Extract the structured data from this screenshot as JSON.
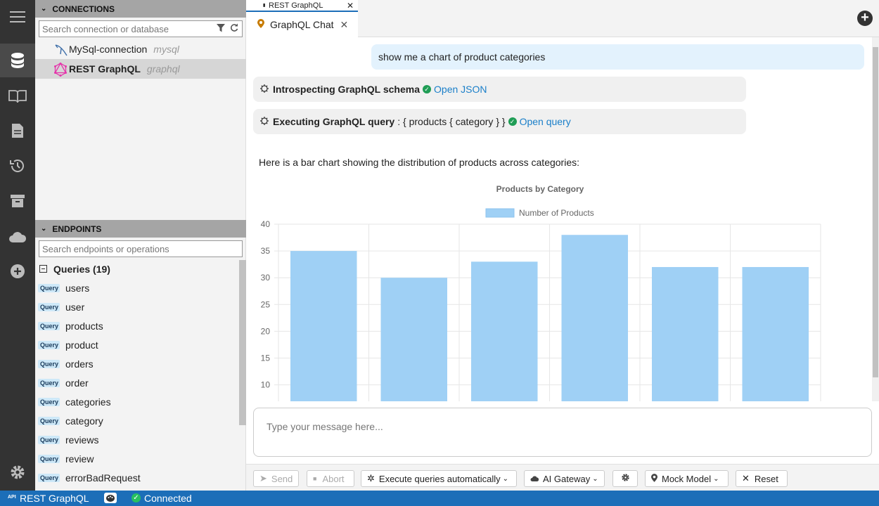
{
  "activity": {
    "icons": [
      "menu-icon",
      "database-icon",
      "book-icon",
      "file-icon",
      "history-icon",
      "archive-icon",
      "cloud-icon",
      "add-icon",
      "settings-icon"
    ]
  },
  "connections": {
    "header": "CONNECTIONS",
    "search_placeholder": "Search connection or database",
    "items": [
      {
        "name": "MySql-connection",
        "driver": "mysql"
      },
      {
        "name": "REST GraphQL",
        "driver": "graphql"
      }
    ]
  },
  "endpoints": {
    "header": "ENDPOINTS",
    "search_placeholder": "Search endpoints or operations",
    "group": "Queries (19)",
    "badge": "Query",
    "items": [
      "users",
      "user",
      "products",
      "product",
      "orders",
      "order",
      "categories",
      "category",
      "reviews",
      "review",
      "errorBadRequest"
    ]
  },
  "tabs": {
    "top_tab": "REST GraphQL",
    "chat_tab": "GraphQL Chat"
  },
  "chat": {
    "user_message": "show me a chart of product categories",
    "step1_label": "Introspecting GraphQL schema",
    "step1_link": "Open JSON",
    "step2_label": "Executing GraphQL query",
    "step2_query": ": { products { category } }",
    "step2_link": "Open query",
    "answer": "Here is a bar chart showing the distribution of products across categories:"
  },
  "chart_data": {
    "type": "bar",
    "title": "Products by Category",
    "legend": "Number of Products",
    "series": [
      {
        "name": "Number of Products",
        "values": [
          35,
          30,
          33,
          38,
          32,
          32
        ]
      }
    ],
    "yticks": [
      "40",
      "35",
      "30",
      "25",
      "20",
      "15",
      "10"
    ],
    "ylim": [
      0,
      40
    ],
    "bar_color": "#9fd0f5"
  },
  "composer": {
    "placeholder": "Type your message here..."
  },
  "toolbar": {
    "send": "Send",
    "abort": "Abort",
    "execute": "Execute queries automatically",
    "gateway": "AI Gateway",
    "model": "Mock Model",
    "reset": "Reset"
  },
  "status": {
    "connection": "REST GraphQL",
    "state": "Connected",
    "api": "API"
  }
}
